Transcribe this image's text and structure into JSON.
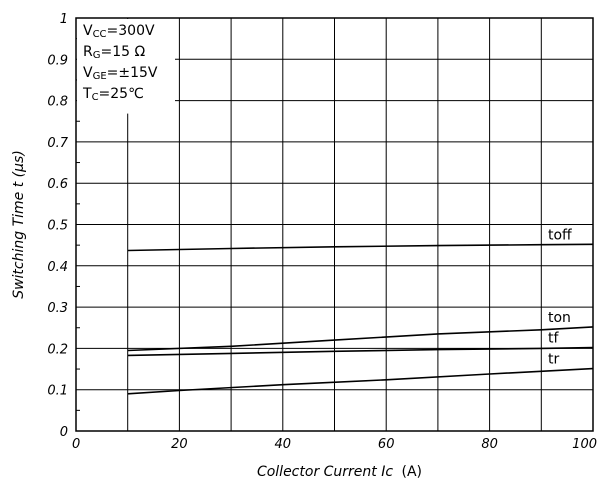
{
  "chart_data": {
    "type": "line",
    "xlabel": {
      "main": "Collector Current Ic",
      "unit": "(A)"
    },
    "ylabel": "Switching Time t (μs)",
    "xlim": [
      0,
      100
    ],
    "ylim": [
      0,
      1
    ],
    "xticks": [
      0,
      20,
      40,
      60,
      80,
      100
    ],
    "yticks": [
      0,
      0.1,
      0.2,
      0.3,
      0.4,
      0.5,
      0.6,
      0.7,
      0.8,
      0.9,
      1
    ],
    "grid": true,
    "conditions": [
      {
        "main": "V",
        "sub": "CC",
        "rest": "=300V"
      },
      {
        "main": "R",
        "sub": "G",
        "rest": "=15 Ω"
      },
      {
        "main": "V",
        "sub": "GE",
        "rest": "=±15V"
      },
      {
        "main": "T",
        "sub": "C",
        "rest": "=25℃"
      }
    ],
    "series": [
      {
        "name": "toff",
        "x": [
          10,
          30,
          50,
          70,
          90,
          100
        ],
        "y": [
          0.437,
          0.442,
          0.446,
          0.449,
          0.451,
          0.452
        ]
      },
      {
        "name": "ton",
        "x": [
          10,
          30,
          50,
          70,
          90,
          100
        ],
        "y": [
          0.195,
          0.205,
          0.22,
          0.235,
          0.245,
          0.252
        ]
      },
      {
        "name": "tf",
        "x": [
          10,
          30,
          50,
          70,
          90,
          100
        ],
        "y": [
          0.183,
          0.188,
          0.193,
          0.197,
          0.2,
          0.202
        ]
      },
      {
        "name": "tr",
        "x": [
          10,
          20,
          40,
          60,
          80,
          100
        ],
        "y": [
          0.09,
          0.098,
          0.112,
          0.124,
          0.138,
          0.151
        ]
      }
    ]
  }
}
